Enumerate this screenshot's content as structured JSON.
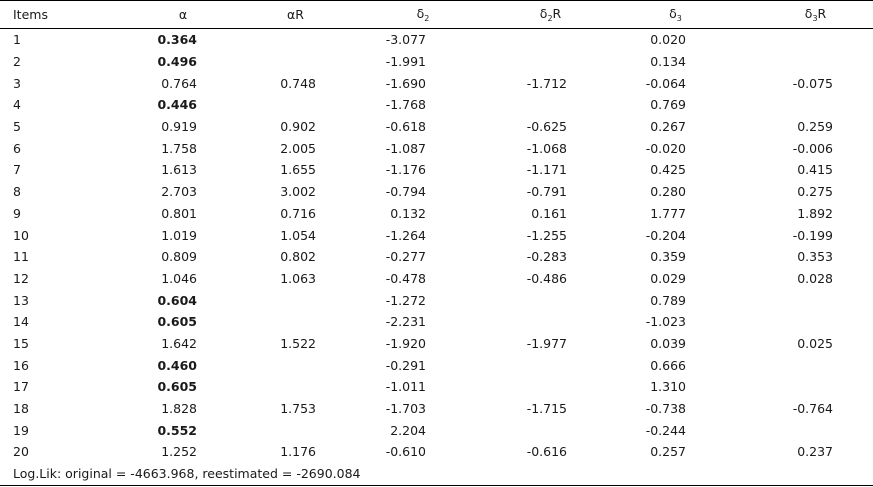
{
  "table": {
    "headers": [
      {
        "main": "Items",
        "sub": "",
        "suffix": ""
      },
      {
        "main": "α",
        "sub": "",
        "suffix": ""
      },
      {
        "main": "α",
        "sub": "",
        "suffix": "R"
      },
      {
        "main": "δ",
        "sub": "2",
        "suffix": ""
      },
      {
        "main": "δ",
        "sub": "2",
        "suffix": "R"
      },
      {
        "main": "δ",
        "sub": "3",
        "suffix": ""
      },
      {
        "main": "δ",
        "sub": "3",
        "suffix": "R"
      }
    ],
    "rows": [
      {
        "item": "1",
        "alpha": "0.364",
        "alpha_bold": true,
        "alphaR": "",
        "d2": "-3.077",
        "d2R": "",
        "d3": "0.020",
        "d3R": ""
      },
      {
        "item": "2",
        "alpha": "0.496",
        "alpha_bold": true,
        "alphaR": "",
        "d2": "-1.991",
        "d2R": "",
        "d3": "0.134",
        "d3R": ""
      },
      {
        "item": "3",
        "alpha": "0.764",
        "alpha_bold": false,
        "alphaR": "0.748",
        "d2": "-1.690",
        "d2R": "-1.712",
        "d3": "-0.064",
        "d3R": "-0.075"
      },
      {
        "item": "4",
        "alpha": "0.446",
        "alpha_bold": true,
        "alphaR": "",
        "d2": "-1.768",
        "d2R": "",
        "d3": "0.769",
        "d3R": ""
      },
      {
        "item": "5",
        "alpha": "0.919",
        "alpha_bold": false,
        "alphaR": "0.902",
        "d2": "-0.618",
        "d2R": "-0.625",
        "d3": "0.267",
        "d3R": "0.259"
      },
      {
        "item": "6",
        "alpha": "1.758",
        "alpha_bold": false,
        "alphaR": "2.005",
        "d2": "-1.087",
        "d2R": "-1.068",
        "d3": "-0.020",
        "d3R": "-0.006"
      },
      {
        "item": "7",
        "alpha": "1.613",
        "alpha_bold": false,
        "alphaR": "1.655",
        "d2": "-1.176",
        "d2R": "-1.171",
        "d3": "0.425",
        "d3R": "0.415"
      },
      {
        "item": "8",
        "alpha": "2.703",
        "alpha_bold": false,
        "alphaR": "3.002",
        "d2": "-0.794",
        "d2R": "-0.791",
        "d3": "0.280",
        "d3R": "0.275"
      },
      {
        "item": "9",
        "alpha": "0.801",
        "alpha_bold": false,
        "alphaR": "0.716",
        "d2": "0.132",
        "d2R": "0.161",
        "d3": "1.777",
        "d3R": "1.892"
      },
      {
        "item": "10",
        "alpha": "1.019",
        "alpha_bold": false,
        "alphaR": "1.054",
        "d2": "-1.264",
        "d2R": "-1.255",
        "d3": "-0.204",
        "d3R": "-0.199"
      },
      {
        "item": "11",
        "alpha": "0.809",
        "alpha_bold": false,
        "alphaR": "0.802",
        "d2": "-0.277",
        "d2R": "-0.283",
        "d3": "0.359",
        "d3R": "0.353"
      },
      {
        "item": "12",
        "alpha": "1.046",
        "alpha_bold": false,
        "alphaR": "1.063",
        "d2": "-0.478",
        "d2R": "-0.486",
        "d3": "0.029",
        "d3R": "0.028"
      },
      {
        "item": "13",
        "alpha": "0.604",
        "alpha_bold": true,
        "alphaR": "",
        "d2": "-1.272",
        "d2R": "",
        "d3": "0.789",
        "d3R": ""
      },
      {
        "item": "14",
        "alpha": "0.605",
        "alpha_bold": true,
        "alphaR": "",
        "d2": "-2.231",
        "d2R": "",
        "d3": "-1.023",
        "d3R": ""
      },
      {
        "item": "15",
        "alpha": "1.642",
        "alpha_bold": false,
        "alphaR": "1.522",
        "d2": "-1.920",
        "d2R": "-1.977",
        "d3": "0.039",
        "d3R": "0.025"
      },
      {
        "item": "16",
        "alpha": "0.460",
        "alpha_bold": true,
        "alphaR": "",
        "d2": "-0.291",
        "d2R": "",
        "d3": "0.666",
        "d3R": ""
      },
      {
        "item": "17",
        "alpha": "0.605",
        "alpha_bold": true,
        "alphaR": "",
        "d2": "-1.011",
        "d2R": "",
        "d3": "1.310",
        "d3R": ""
      },
      {
        "item": "18",
        "alpha": "1.828",
        "alpha_bold": false,
        "alphaR": "1.753",
        "d2": "-1.703",
        "d2R": "-1.715",
        "d3": "-0.738",
        "d3R": "-0.764"
      },
      {
        "item": "19",
        "alpha": "0.552",
        "alpha_bold": true,
        "alphaR": "",
        "d2": "2.204",
        "d2R": "",
        "d3": "-0.244",
        "d3R": ""
      },
      {
        "item": "20",
        "alpha": "1.252",
        "alpha_bold": false,
        "alphaR": "1.176",
        "d2": "-0.610",
        "d2R": "-0.616",
        "d3": "0.257",
        "d3R": "0.237"
      }
    ],
    "footer": "Log.Lik: original = -4663.968, reestimated = -2690.084"
  }
}
